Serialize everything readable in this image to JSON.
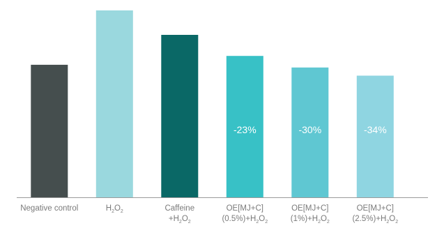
{
  "chart_data": {
    "type": "bar",
    "categories": [
      {
        "name": "negative-control",
        "lines": [
          [
            {
              "t": "Negative control"
            }
          ]
        ]
      },
      {
        "name": "h2o2",
        "lines": [
          [
            {
              "t": "H"
            },
            {
              "t": "2",
              "sub": true
            },
            {
              "t": "O"
            },
            {
              "t": "2",
              "sub": true
            }
          ]
        ]
      },
      {
        "name": "caffeine-h2o2",
        "lines": [
          [
            {
              "t": "Caffeine"
            }
          ],
          [
            {
              "t": "+H"
            },
            {
              "t": "2",
              "sub": true
            },
            {
              "t": "O"
            },
            {
              "t": "2",
              "sub": true
            }
          ]
        ]
      },
      {
        "name": "oe-0-5-h2o2",
        "lines": [
          [
            {
              "t": "OE[MJ+C]"
            }
          ],
          [
            {
              "t": "(0.5%)+H"
            },
            {
              "t": "2",
              "sub": true
            },
            {
              "t": "O"
            },
            {
              "t": "2",
              "sub": true
            }
          ]
        ]
      },
      {
        "name": "oe-1-h2o2",
        "lines": [
          [
            {
              "t": "OE[MJ+C]"
            }
          ],
          [
            {
              "t": "(1%)+H"
            },
            {
              "t": "2",
              "sub": true
            },
            {
              "t": "O"
            },
            {
              "t": "2",
              "sub": true
            }
          ]
        ]
      },
      {
        "name": "oe-2-5-h2o2",
        "lines": [
          [
            {
              "t": "OE[MJ+C]"
            }
          ],
          [
            {
              "t": "(2.5%)+H"
            },
            {
              "t": "2",
              "sub": true
            },
            {
              "t": "O"
            },
            {
              "t": "2",
              "sub": true
            }
          ]
        ]
      }
    ],
    "values": [
      195,
      275,
      239,
      208,
      191,
      179
    ],
    "bar_labels": [
      "",
      "",
      "",
      "-23%",
      "-30%",
      "-34%"
    ],
    "colors": [
      "#454e4e",
      "#9ad8de",
      "#0a6866",
      "#38c1c6",
      "#5fc7d2",
      "#8fd5e1"
    ],
    "ylim": [
      0,
      280
    ],
    "title": "",
    "xlabel": "",
    "ylabel": "",
    "grid": false,
    "legend": "none"
  }
}
